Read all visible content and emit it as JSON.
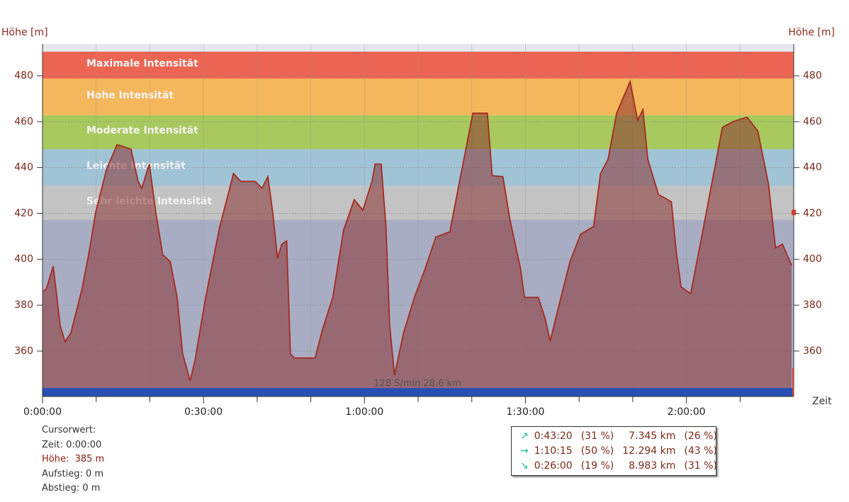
{
  "chart_data": {
    "type": "area",
    "y_label": "Höhe [m]",
    "y2_label": "Höhe [m]",
    "x_label": "Zeit",
    "ylim": [
      340.2,
      493.9
    ],
    "yticks": [
      360,
      380,
      400,
      420,
      440,
      460,
      480
    ],
    "xlim": [
      0,
      140
    ],
    "xticks": [
      {
        "value": 0,
        "label": "0:00:00"
      },
      {
        "value": 30,
        "label": "0:30:00"
      },
      {
        "value": 60,
        "label": "1:00:00"
      },
      {
        "value": 90,
        "label": "1:30:00"
      },
      {
        "value": 120,
        "label": "2:00:00"
      }
    ],
    "xminorticks": [
      10,
      20,
      40,
      50,
      70,
      80,
      100,
      110,
      130
    ],
    "grid": true,
    "zones": [
      {
        "name": "Maximale Intensität",
        "color": "#ec6452",
        "range": [
          478.8,
          490.5
        ]
      },
      {
        "name": "Hohe Intensität",
        "color": "#f5b75b",
        "range": [
          462.8,
          478.8
        ]
      },
      {
        "name": "Moderate Intensität",
        "color": "#a8c95e",
        "range": [
          448.0,
          462.8
        ]
      },
      {
        "name": "Leichte Intensität",
        "color": "#a1c3d6",
        "range": [
          432.0,
          448.0
        ]
      },
      {
        "name": "Sehr leichte Intensität",
        "color": "#c3c3c3",
        "range": [
          417.2,
          432.0
        ]
      }
    ],
    "series": [
      {
        "name": "Höhe",
        "color": "#a52a1e",
        "x": [
          0,
          0.7,
          2,
          3.3,
          4.2,
          5.3,
          7.3,
          8.6,
          9.9,
          11.9,
          13.9,
          16.5,
          17.8,
          18.5,
          19.9,
          21.1,
          22.4,
          23.8,
          25.1,
          26.1,
          27.5,
          28.4,
          30.4,
          33,
          35.6,
          36.9,
          39.6,
          40.9,
          42,
          42.9,
          43.8,
          44.6,
          45.5,
          46.2,
          46.9,
          50.8,
          52.2,
          54.1,
          56.1,
          58.1,
          59.7,
          61.4,
          62,
          63.1,
          64,
          64.7,
          65.6,
          67.3,
          69.3,
          71.3,
          73.3,
          75.9,
          77.9,
          80.2,
          82.9,
          83.8,
          85.8,
          87.1,
          89.1,
          89.8,
          92.4,
          93.7,
          94.6,
          96.3,
          98.3,
          100.3,
          102.7,
          104,
          105.4,
          107,
          109.5,
          110.9,
          111.9,
          112.8,
          114.8,
          116.1,
          117.2,
          118.1,
          119,
          120.8,
          122.7,
          124.7,
          126.7,
          128.7,
          131.3,
          133.3,
          135.3,
          136.6,
          137.9,
          139.6
        ],
        "values": [
          386,
          387,
          397,
          371,
          364,
          368,
          386.5,
          402,
          420.5,
          439,
          450,
          448,
          434,
          431,
          441.5,
          420.5,
          402,
          399,
          383.4,
          359,
          347,
          355.7,
          383.4,
          414,
          437.4,
          434,
          434,
          431,
          436,
          420.5,
          400.4,
          406.6,
          408,
          358.8,
          357,
          357,
          369.6,
          383.4,
          412.8,
          426,
          421.4,
          434,
          441.5,
          441.5,
          414.3,
          371,
          349.5,
          368,
          383.4,
          395.8,
          409.7,
          412,
          436,
          463.7,
          463.7,
          436.5,
          436,
          417.4,
          395.8,
          383.4,
          383.4,
          374,
          364.3,
          380.4,
          399,
          411,
          414.3,
          437.4,
          443.6,
          463.7,
          477.5,
          460.6,
          465.2,
          443.6,
          428.2,
          426.6,
          425,
          403.5,
          388,
          385,
          408,
          432.8,
          457.5,
          460,
          462,
          456,
          432.8,
          405,
          406.6,
          397.3
        ]
      }
    ],
    "footer": "128 S/min 28.6 km"
  },
  "cursor": {
    "title": "Cursorwert:",
    "time": "Zeit: 0:00:00",
    "height": "Höhe:  385 m",
    "ascent": "Aufstieg: 0 m",
    "descent": "Abstieg: 0 m"
  },
  "stats": {
    "rows": [
      [
        "↗",
        "0:43:20",
        "(31 %)",
        "7.345 km",
        "(26 %)"
      ],
      [
        "→",
        "1:10:15",
        "(50 %)",
        "12.294 km",
        "(43 %)"
      ],
      [
        "↘",
        "0:26:00",
        "(19 %)",
        "8.983 km",
        "(31 %)"
      ]
    ]
  }
}
